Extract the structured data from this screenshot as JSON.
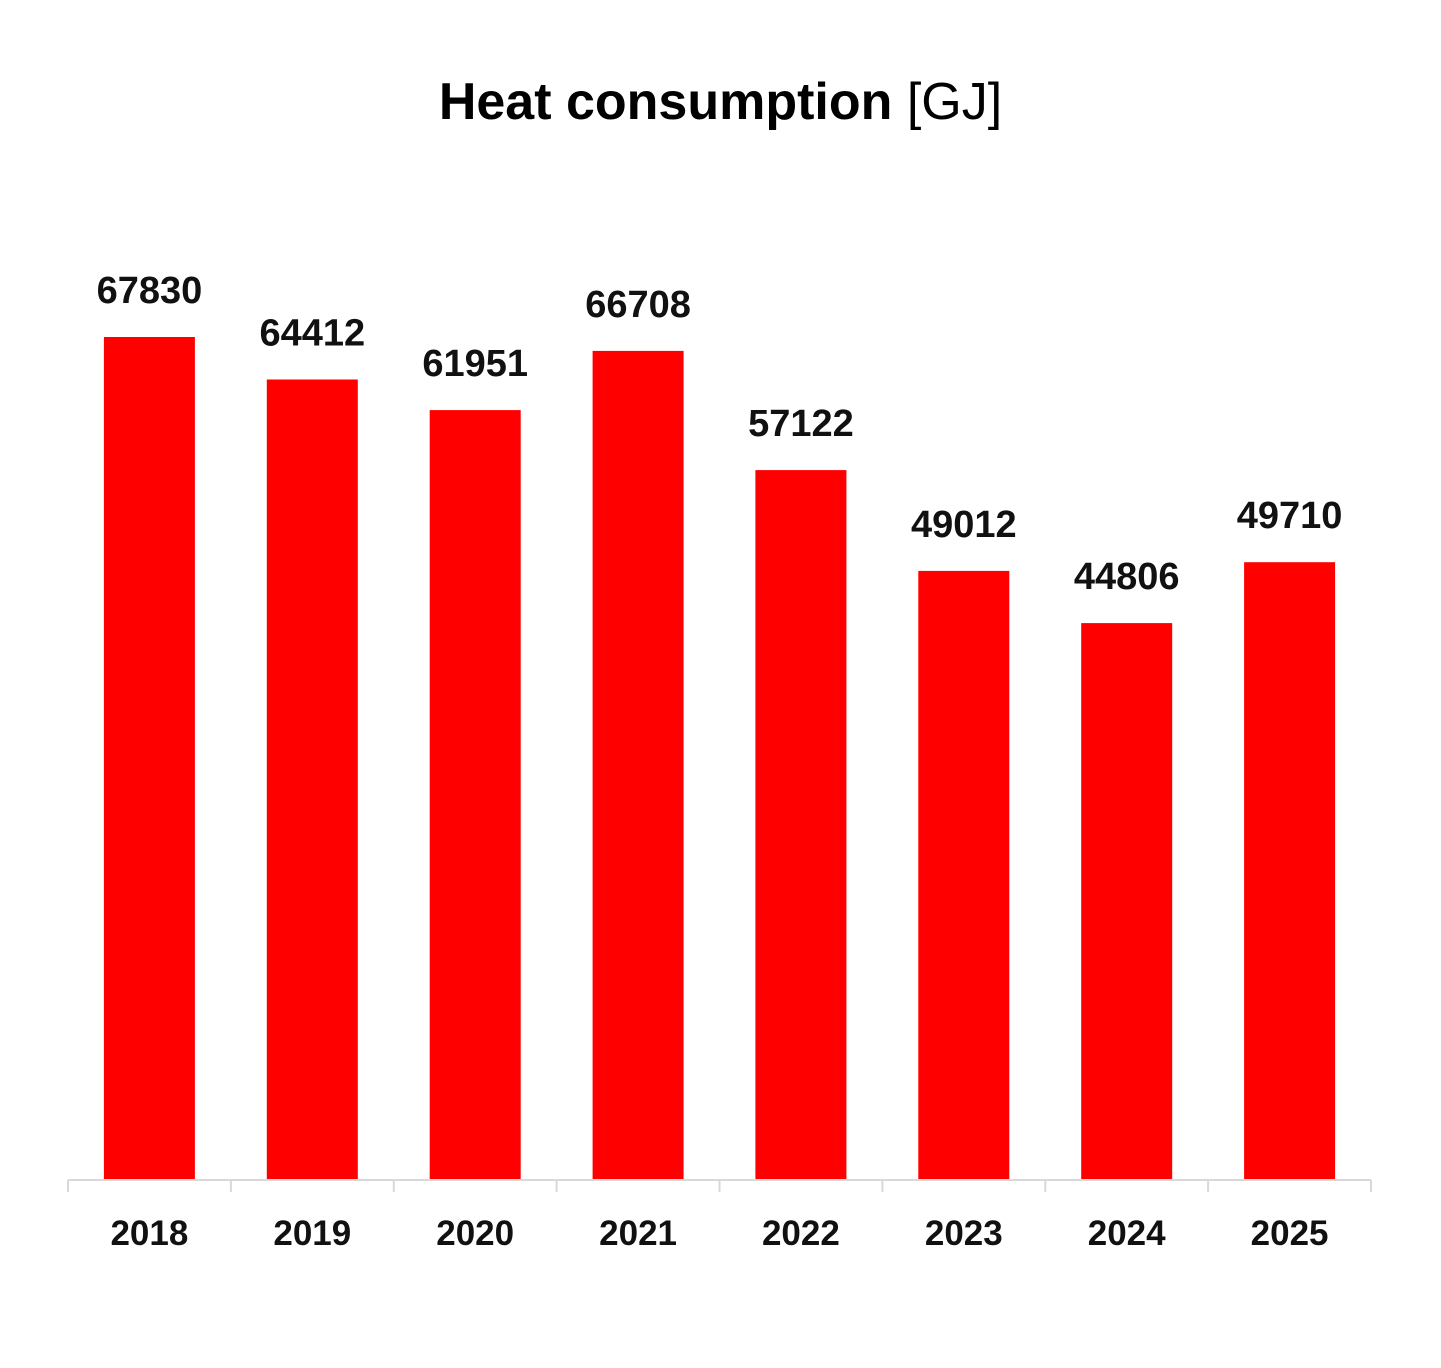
{
  "chart_data": {
    "type": "bar",
    "title": "Heat consumption",
    "unit": "[GJ]",
    "xlabel": "",
    "ylabel": "",
    "categories": [
      "2018",
      "2019",
      "2020",
      "2021",
      "2022",
      "2023",
      "2024",
      "2025"
    ],
    "values": [
      67830,
      64412,
      61951,
      66708,
      57122,
      49012,
      44806,
      49710
    ],
    "ylim": [
      0,
      75000
    ],
    "grid": false,
    "legend": "none",
    "bar_color": "#ff0000",
    "axis_color": "#d9d9d9",
    "label_color": "#111111"
  }
}
